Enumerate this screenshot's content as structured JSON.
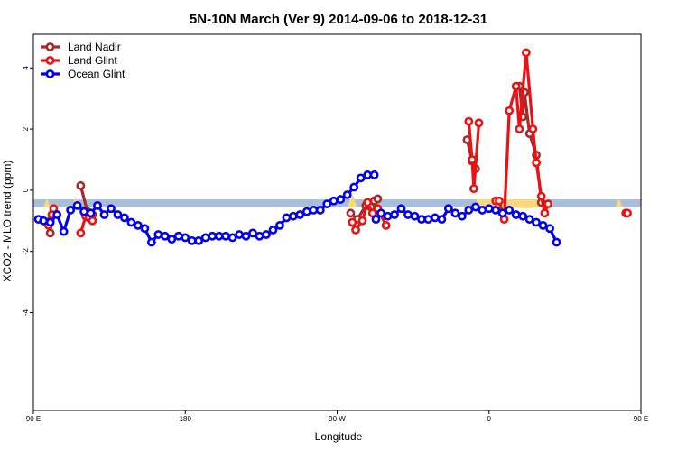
{
  "chart_data": {
    "type": "line",
    "title": "5N-10N March (Ver 9)   2014-09-06 to 2018-12-31",
    "xlabel": "Longitude",
    "ylabel": "XCO2 - MLO trend (ppm)",
    "xlim": [
      90,
      450
    ],
    "ylim": [
      -7.2,
      5.1
    ],
    "x_ticks": [
      {
        "value": 90,
        "label": "90 E"
      },
      {
        "value": 180,
        "label": "180"
      },
      {
        "value": 270,
        "label": "90 W"
      },
      {
        "value": 360,
        "label": "0"
      },
      {
        "value": 450,
        "label": "90 E"
      },
      {
        "value": 540,
        "label": "180"
      }
    ],
    "y_ticks": [
      {
        "value": 4,
        "label": "4"
      },
      {
        "value": 2,
        "label": "2"
      },
      {
        "value": 0,
        "label": "0"
      },
      {
        "value": -2,
        "label": "-2"
      },
      {
        "value": -4,
        "label": "-4"
      }
    ],
    "band": {
      "y_min": -0.55,
      "y_max": -0.3,
      "color": "#a8bfdc"
    },
    "land_fill_color": "#fbd97a",
    "legend": {
      "position": "top-left",
      "entries": [
        "Land Nadir",
        "Land Glint",
        "Ocean Glint"
      ]
    },
    "series": [
      {
        "name": "Land Nadir",
        "color": "#a52a2a",
        "segments": [
          [
            [
              100,
              -1.4
            ],
            [
              101,
              -0.8
            ],
            [
              102,
              -0.7
            ]
          ],
          [
            [
              118,
              0.15
            ],
            [
              122,
              -0.7
            ],
            [
              124,
              -0.9
            ],
            [
              125,
              -0.8
            ]
          ],
          [
            [
              278,
              -0.75
            ],
            [
              282,
              -0.95
            ],
            [
              287,
              -0.5
            ],
            [
              290,
              -0.55
            ],
            [
              292,
              -0.35
            ],
            [
              294,
              -0.28
            ]
          ],
          [
            [
              347,
              1.65
            ],
            [
              350,
              0.95
            ],
            [
              352,
              0.7
            ]
          ],
          [
            [
              378,
              3.4
            ],
            [
              380,
              2.4
            ],
            [
              381,
              3.2
            ],
            [
              384,
              1.85
            ],
            [
              388,
              1.15
            ],
            [
              391,
              -0.4
            ]
          ],
          [
            [
              459,
              -1.4
            ],
            [
              460,
              -0.9
            ],
            [
              461,
              -0.7
            ]
          ],
          [
            [
              479,
              0.15
            ],
            [
              482,
              -0.6
            ],
            [
              483,
              -0.85
            ]
          ]
        ]
      },
      {
        "name": "Land Glint",
        "color": "#ee1111",
        "segments": [
          [
            [
              99,
              -1.15
            ],
            [
              100,
              -1.0
            ],
            [
              101,
              -0.8
            ],
            [
              102,
              -0.6
            ]
          ],
          [
            [
              118,
              -1.4
            ],
            [
              121,
              -0.85
            ],
            [
              123,
              -0.9
            ],
            [
              125,
              -1.0
            ]
          ],
          [
            [
              279,
              -1.05
            ],
            [
              281,
              -1.3
            ],
            [
              285,
              -1.0
            ],
            [
              288,
              -0.4
            ],
            [
              291,
              -0.75
            ],
            [
              294,
              -0.6
            ],
            [
              299,
              -1.15
            ]
          ],
          [
            [
              348,
              2.25
            ],
            [
              350,
              1.0
            ],
            [
              351,
              0.05
            ],
            [
              354,
              2.2
            ]
          ],
          [
            [
              364,
              -0.35
            ],
            [
              366,
              -0.35
            ],
            [
              369,
              -0.95
            ],
            [
              372,
              2.6
            ],
            [
              376,
              3.4
            ],
            [
              378,
              2.0
            ],
            [
              382,
              4.5
            ],
            [
              386,
              2.0
            ],
            [
              388,
              0.9
            ],
            [
              391,
              -0.2
            ],
            [
              393,
              -0.75
            ],
            [
              395,
              -0.45
            ]
          ],
          [
            [
              441,
              -0.75
            ],
            [
              442,
              -0.75
            ]
          ],
          [
            [
              459,
              -1.2
            ],
            [
              460,
              -0.85
            ]
          ],
          [
            [
              479,
              -1.4
            ],
            [
              482,
              -0.85
            ],
            [
              484,
              -1.0
            ]
          ]
        ]
      },
      {
        "name": "Ocean Glint",
        "color": "#0000ee",
        "segments": [
          [
            [
              93,
              -0.95
            ],
            [
              96,
              -1.0
            ],
            [
              100,
              -1.05
            ],
            [
              104,
              -0.8
            ],
            [
              108,
              -1.35
            ],
            [
              112,
              -0.65
            ],
            [
              116,
              -0.5
            ],
            [
              120,
              -0.7
            ],
            [
              124,
              -0.75
            ],
            [
              128,
              -0.5
            ],
            [
              132,
              -0.8
            ],
            [
              136,
              -0.6
            ],
            [
              140,
              -0.8
            ],
            [
              144,
              -0.9
            ],
            [
              148,
              -1.05
            ],
            [
              152,
              -1.15
            ],
            [
              156,
              -1.25
            ],
            [
              160,
              -1.7
            ],
            [
              164,
              -1.45
            ],
            [
              168,
              -1.5
            ],
            [
              172,
              -1.6
            ],
            [
              176,
              -1.5
            ],
            [
              180,
              -1.55
            ],
            [
              184,
              -1.65
            ],
            [
              188,
              -1.65
            ],
            [
              192,
              -1.55
            ],
            [
              196,
              -1.5
            ],
            [
              200,
              -1.5
            ],
            [
              204,
              -1.5
            ],
            [
              208,
              -1.55
            ],
            [
              212,
              -1.45
            ],
            [
              216,
              -1.5
            ],
            [
              220,
              -1.4
            ],
            [
              224,
              -1.5
            ],
            [
              228,
              -1.45
            ],
            [
              232,
              -1.3
            ],
            [
              236,
              -1.15
            ],
            [
              240,
              -0.9
            ],
            [
              244,
              -0.85
            ],
            [
              248,
              -0.8
            ],
            [
              252,
              -0.7
            ],
            [
              256,
              -0.65
            ],
            [
              260,
              -0.65
            ],
            [
              264,
              -0.45
            ],
            [
              268,
              -0.35
            ],
            [
              272,
              -0.3
            ],
            [
              276,
              -0.15
            ],
            [
              280,
              0.1
            ],
            [
              284,
              0.4
            ],
            [
              288,
              0.5
            ],
            [
              292,
              0.5
            ]
          ],
          [
            [
              293,
              -0.95
            ],
            [
              296,
              -0.75
            ],
            [
              300,
              -0.85
            ],
            [
              304,
              -0.8
            ],
            [
              308,
              -0.6
            ],
            [
              312,
              -0.8
            ],
            [
              316,
              -0.85
            ],
            [
              320,
              -0.95
            ],
            [
              324,
              -0.95
            ],
            [
              328,
              -0.9
            ],
            [
              332,
              -0.95
            ],
            [
              336,
              -0.6
            ],
            [
              340,
              -0.75
            ],
            [
              344,
              -0.85
            ],
            [
              348,
              -0.65
            ],
            [
              352,
              -0.55
            ],
            [
              356,
              -0.65
            ],
            [
              360,
              -0.6
            ],
            [
              364,
              -0.65
            ],
            [
              368,
              -0.75
            ],
            [
              372,
              -0.65
            ],
            [
              376,
              -0.8
            ],
            [
              380,
              -0.85
            ],
            [
              384,
              -0.95
            ],
            [
              388,
              -1.05
            ],
            [
              392,
              -1.15
            ],
            [
              396,
              -1.25
            ],
            [
              400,
              -1.7
            ]
          ]
        ]
      }
    ]
  }
}
